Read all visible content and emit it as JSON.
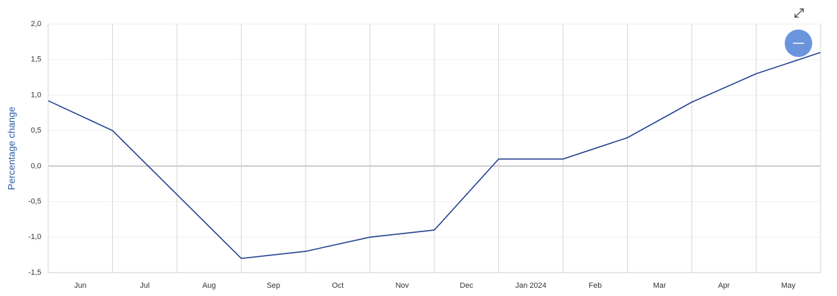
{
  "chart_data": {
    "type": "line",
    "y_label": "Percentage change",
    "categories": [
      null,
      "Jun",
      "Jul",
      "Aug",
      "Sep",
      "Oct",
      "Nov",
      "Dec",
      "Jan 2024",
      "Feb",
      "Mar",
      "Apr",
      "May"
    ],
    "series": [
      {
        "name": "Percentage change",
        "color": "#1f3f8f",
        "values": [
          0.92,
          0.5,
          -0.4,
          -1.3,
          -1.2,
          -1.0,
          -0.9,
          0.1,
          0.1,
          0.4,
          0.9,
          1.3,
          1.6
        ]
      }
    ],
    "ylim": [
      -1.5,
      2.0
    ],
    "yticks": [
      {
        "value": -1.5,
        "label": "-1,5"
      },
      {
        "value": -1.0,
        "label": "-1,0"
      },
      {
        "value": -0.5,
        "label": "-0,5"
      },
      {
        "value": 0.0,
        "label": "0,0"
      },
      {
        "value": 0.5,
        "label": "0,5"
      },
      {
        "value": 1.0,
        "label": "1,0"
      },
      {
        "value": 1.5,
        "label": "1,5"
      },
      {
        "value": 2.0,
        "label": "2,0"
      }
    ],
    "grid": true
  }
}
